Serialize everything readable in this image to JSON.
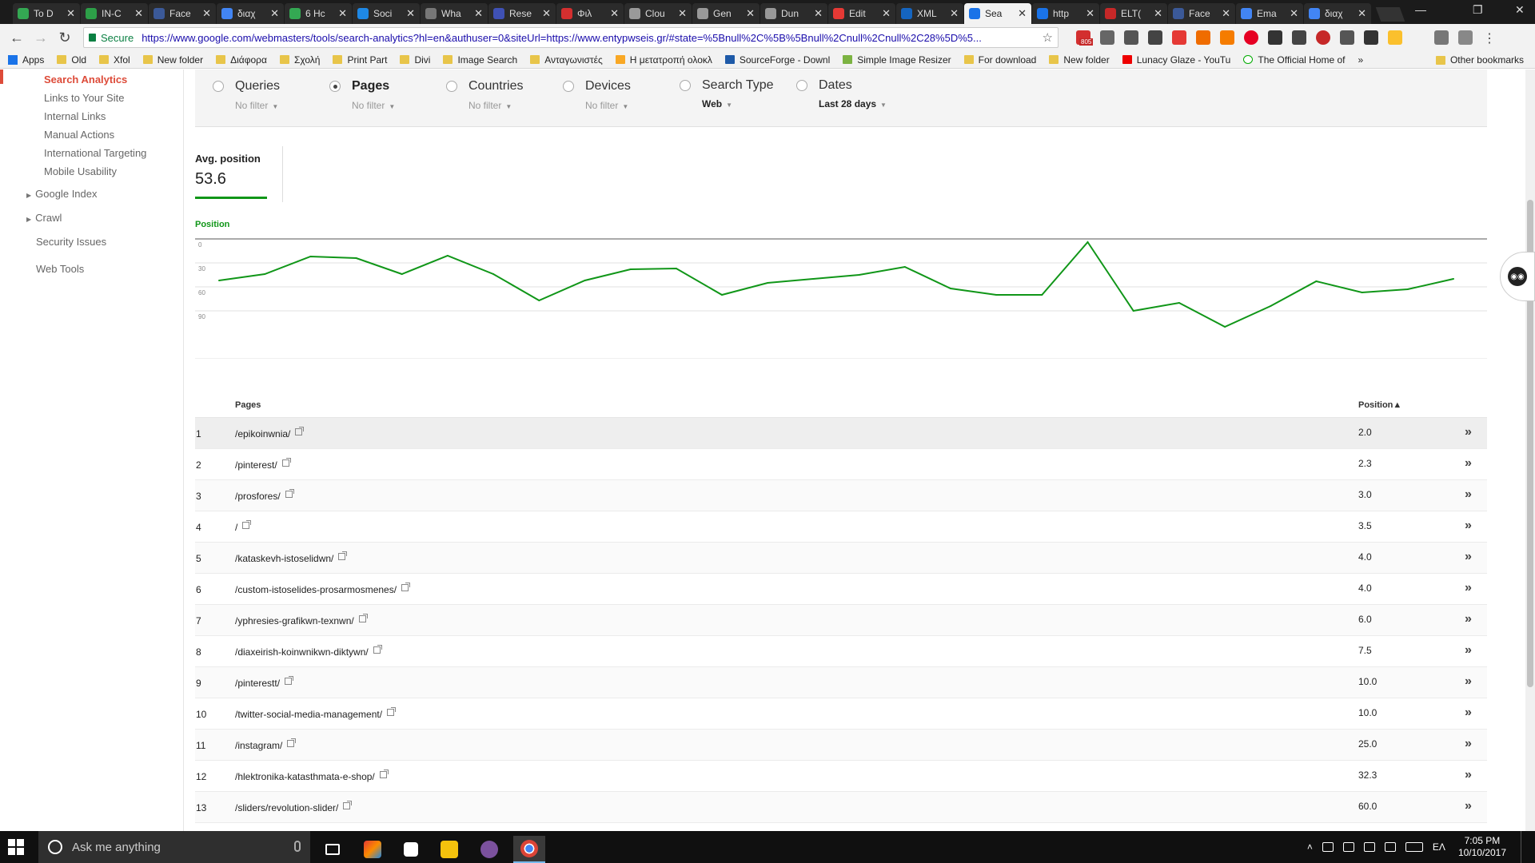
{
  "browser": {
    "tabs": [
      {
        "title": "To D",
        "color": "#34a853",
        "active": false
      },
      {
        "title": "IN-C",
        "color": "#2d9f48",
        "active": false
      },
      {
        "title": "Face",
        "color": "#3b5998",
        "active": false
      },
      {
        "title": "διαχ",
        "color": "#4285f4",
        "active": false
      },
      {
        "title": "6 Hc",
        "color": "#34a853",
        "active": false
      },
      {
        "title": "Soci",
        "color": "#1e88e5",
        "active": false
      },
      {
        "title": "Wha",
        "color": "#777777",
        "active": false
      },
      {
        "title": "Rese",
        "color": "#3f51b5",
        "active": false
      },
      {
        "title": "Φιλ",
        "color": "#d32f2f",
        "active": false
      },
      {
        "title": "Clou",
        "color": "#999999",
        "active": false
      },
      {
        "title": "Gen",
        "color": "#999999",
        "active": false
      },
      {
        "title": "Dun",
        "color": "#999999",
        "active": false
      },
      {
        "title": "Edit",
        "color": "#e53935",
        "active": false
      },
      {
        "title": "XML",
        "color": "#1565c0",
        "active": false
      },
      {
        "title": "Sea",
        "color": "#1a73e8",
        "active": true
      },
      {
        "title": "http",
        "color": "#1a73e8",
        "active": false
      },
      {
        "title": "ELT(",
        "color": "#c62828",
        "active": false
      },
      {
        "title": "Face",
        "color": "#3b5998",
        "active": false
      },
      {
        "title": "Ema",
        "color": "#4285f4",
        "active": false
      },
      {
        "title": "διαχ",
        "color": "#4285f4",
        "active": false
      }
    ],
    "secure_label": "Secure",
    "url": "https://www.google.com/webmasters/tools/search-analytics?hl=en&authuser=0&siteUrl=https://www.entypwseis.gr/#state=%5Bnull%2C%5B%5Bnull%2Cnull%2Cnull%2C28%5D%5...",
    "extension_badge": "805",
    "bookmarks": [
      "Apps",
      "Old",
      "Xfol",
      "New folder",
      "Διάφορα",
      "Σχολή",
      "Print Part",
      "Divi",
      "Image Search",
      "Ανταγωνιστές",
      "Η μετατροπή ολοκλ",
      "SourceForge - Downl",
      "Simple Image Resizer",
      "For download",
      "New folder",
      "Lunacy Glaze - YouTu",
      "The Official Home of"
    ],
    "bookmarks_more": "»",
    "bookmarks_other": "Other bookmarks"
  },
  "sidebar": {
    "sub_items": [
      {
        "label": "Search Analytics",
        "active": true
      },
      {
        "label": "Links to Your Site",
        "active": false
      },
      {
        "label": "Internal Links",
        "active": false
      },
      {
        "label": "Manual Actions",
        "active": false
      },
      {
        "label": "International Targeting",
        "active": false
      },
      {
        "label": "Mobile Usability",
        "active": false
      }
    ],
    "google_index": "Google Index",
    "crawl": "Crawl",
    "security_issues": "Security Issues",
    "web_tools": "Web Tools"
  },
  "filters": [
    {
      "label": "Queries",
      "sub": "No filter",
      "selected": false
    },
    {
      "label": "Pages",
      "sub": "No filter",
      "selected": true
    },
    {
      "label": "Countries",
      "sub": "No filter",
      "selected": false
    },
    {
      "label": "Devices",
      "sub": "No filter",
      "selected": false
    },
    {
      "label": "Search Type",
      "sub": "Web",
      "selected": false
    },
    {
      "label": "Dates",
      "sub": "Last 28 days",
      "selected": false
    }
  ],
  "metric": {
    "label": "Avg. position",
    "value": "53.6",
    "color": "#109618"
  },
  "chart_data": {
    "type": "line",
    "title": "",
    "ylabel": "Position",
    "ylim": [
      0,
      120
    ],
    "inverted_y": true,
    "yticks": [
      "0",
      "30",
      "60",
      "90"
    ],
    "grid": true,
    "series": [
      {
        "values": [
          52,
          44,
          22,
          24,
          44,
          21,
          44,
          77,
          52,
          38,
          37,
          70,
          55,
          50,
          45,
          35,
          62,
          70,
          70,
          4,
          90,
          80,
          110,
          84,
          53,
          67,
          63,
          50
        ],
        "color": "#109618"
      }
    ]
  },
  "table": {
    "col_pages": "Pages",
    "col_position": "Position",
    "sort_indicator": "▲",
    "go_icon": "»",
    "rows": [
      {
        "idx": "1",
        "page": "/epikoinwnia/",
        "position": "2.0"
      },
      {
        "idx": "2",
        "page": "/pinterest/",
        "position": "2.3"
      },
      {
        "idx": "3",
        "page": "/prosfores/",
        "position": "3.0"
      },
      {
        "idx": "4",
        "page": "/",
        "position": "3.5"
      },
      {
        "idx": "5",
        "page": "/kataskevh-istoselidwn/",
        "position": "4.0"
      },
      {
        "idx": "6",
        "page": "/custom-istoselides-prosarmosmenes/",
        "position": "4.0"
      },
      {
        "idx": "7",
        "page": "/yphresies-grafikwn-texnwn/",
        "position": "6.0"
      },
      {
        "idx": "8",
        "page": "/diaxeirish-koinwnikwn-diktywn/",
        "position": "7.5"
      },
      {
        "idx": "9",
        "page": "/pinterestt/",
        "position": "10.0"
      },
      {
        "idx": "10",
        "page": "/twitter-social-media-management/",
        "position": "10.0"
      },
      {
        "idx": "11",
        "page": "/instagram/",
        "position": "25.0"
      },
      {
        "idx": "12",
        "page": "/hlektronika-katasthmata-e-shop/",
        "position": "32.3"
      },
      {
        "idx": "13",
        "page": "/sliders/revolution-slider/",
        "position": "60.0"
      }
    ]
  },
  "taskbar": {
    "search_placeholder": "Ask me anything",
    "language": "ΕΛ",
    "time": "7:05 PM",
    "date": "10/10/2017"
  }
}
